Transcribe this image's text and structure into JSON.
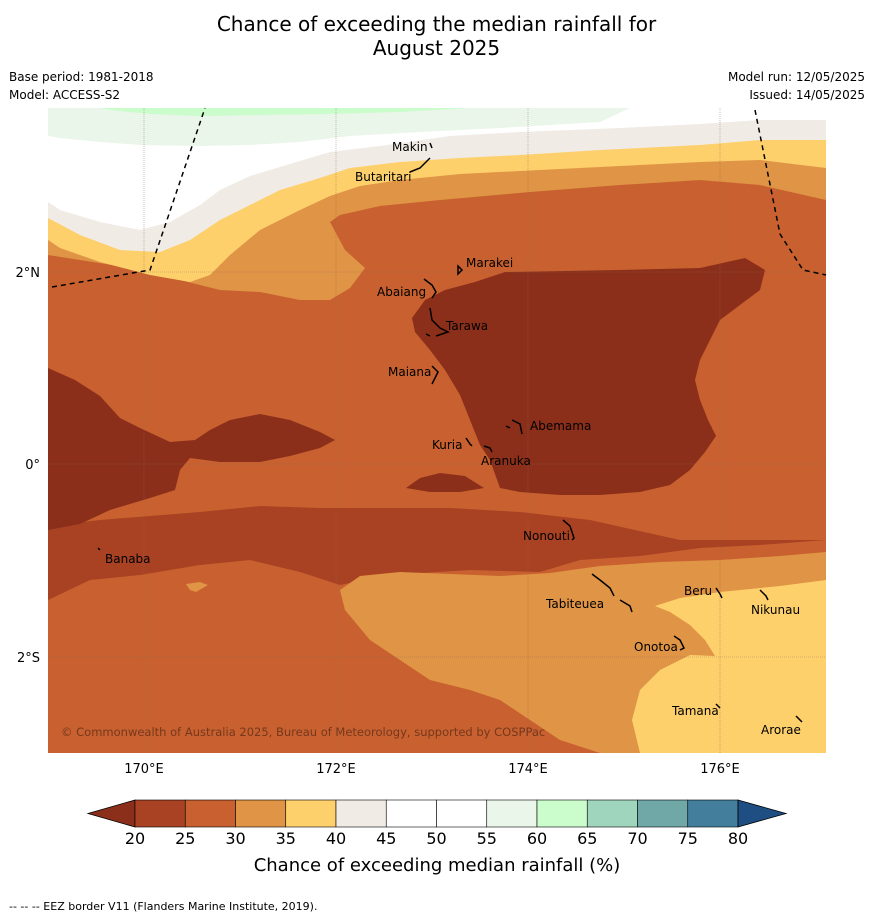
{
  "title_line1": "Chance of exceeding the median rainfall for",
  "title_line2": "August 2025",
  "base_period": "Base period: 1981-2018",
  "model": "Model: ACCESS-S2",
  "model_run": "Model run: 12/05/2025",
  "issued": "Issued: 14/05/2025",
  "copyright": "© Commonwealth of Australia 2025, Bureau of Meteorology, supported by COSPPac",
  "footer": "--  --  -- EEZ border V11 (Flanders Marine Institute, 2019).",
  "axes": {
    "lon_ticks": [
      "170°E",
      "172°E",
      "174°E",
      "176°E"
    ],
    "lat_ticks": [
      "2°N",
      "0°",
      "2°S"
    ]
  },
  "colorbar": {
    "title": "Chance of exceeding median rainfall (%)",
    "ticks": [
      "20",
      "25",
      "30",
      "35",
      "40",
      "45",
      "50",
      "55",
      "60",
      "65",
      "70",
      "75",
      "80"
    ],
    "under_color": "#8b2f1a",
    "over_color": "#1f4e82",
    "colors": [
      "#a84222",
      "#c8612f",
      "#e09445",
      "#fdd06c",
      "#f0ebe5",
      "#ffffff",
      "#ffffff",
      "#eaf6ea",
      "#cbfccb",
      "#a0d5bd",
      "#70a8a8",
      "#437e9c"
    ]
  },
  "islands": [
    "Makin",
    "Butaritari",
    "Marakei",
    "Abaiang",
    "Tarawa",
    "Maiana",
    "Abemama",
    "Kuria",
    "Aranuka",
    "Nonouti",
    "Banaba",
    "Beru",
    "Tabiteuea",
    "Nikunau",
    "Onotoa",
    "Tamana",
    "Arorae"
  ]
}
